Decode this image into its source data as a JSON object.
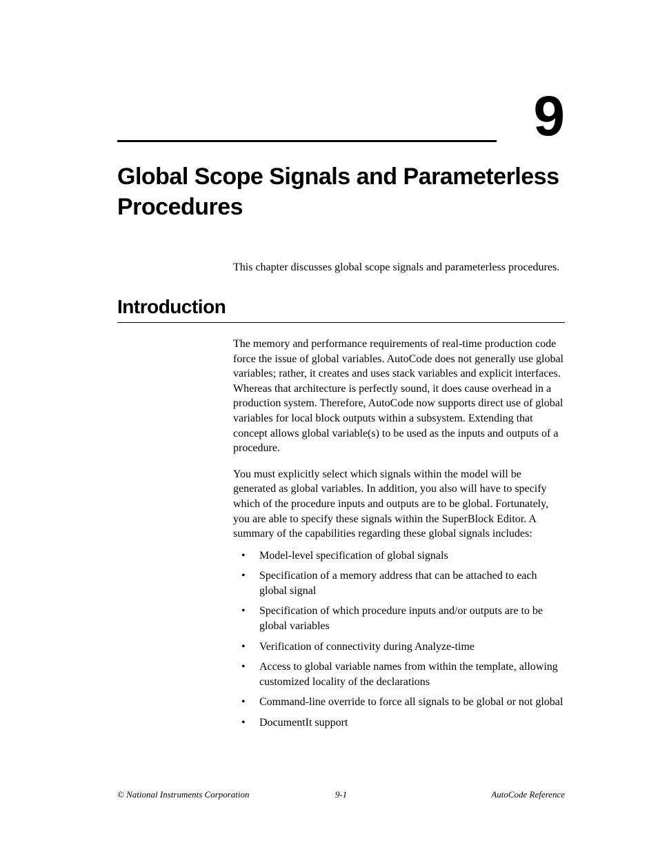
{
  "chapter_number": "9",
  "chapter_title": "Global Scope Signals and Parameterless Procedures",
  "intro": "This chapter discusses global scope signals and parameterless procedures.",
  "section_heading": "Introduction",
  "para1": "The memory and performance requirements of real-time production code force the issue of global variables. AutoCode does not generally use global variables; rather, it creates and uses stack variables and explicit interfaces. Whereas that architecture is perfectly sound, it does cause overhead in a production system. Therefore, AutoCode now supports direct use of global variables for local block outputs within a subsystem. Extending that concept allows global variable(s) to be used as the inputs and outputs of a procedure.",
  "para2": "You must explicitly select which signals within the model will be generated as global variables. In addition, you also will have to specify which of the procedure inputs and outputs are to be global. Fortunately, you are able to specify these signals within the SuperBlock Editor. A summary of the capabilities regarding these global signals includes:",
  "bullets": [
    "Model-level specification of global signals",
    "Specification of a memory address that can be attached to each global signal",
    "Specification of which procedure inputs and/or outputs are to be global variables",
    "Verification of connectivity during Analyze-time",
    "Access to global variable names from within the template, allowing customized locality of the declarations",
    "Command-line override to force all signals to be global or not global",
    "DocumentIt support"
  ],
  "footer_left": "© National Instruments Corporation",
  "footer_center": "9-1",
  "footer_right": "AutoCode Reference"
}
